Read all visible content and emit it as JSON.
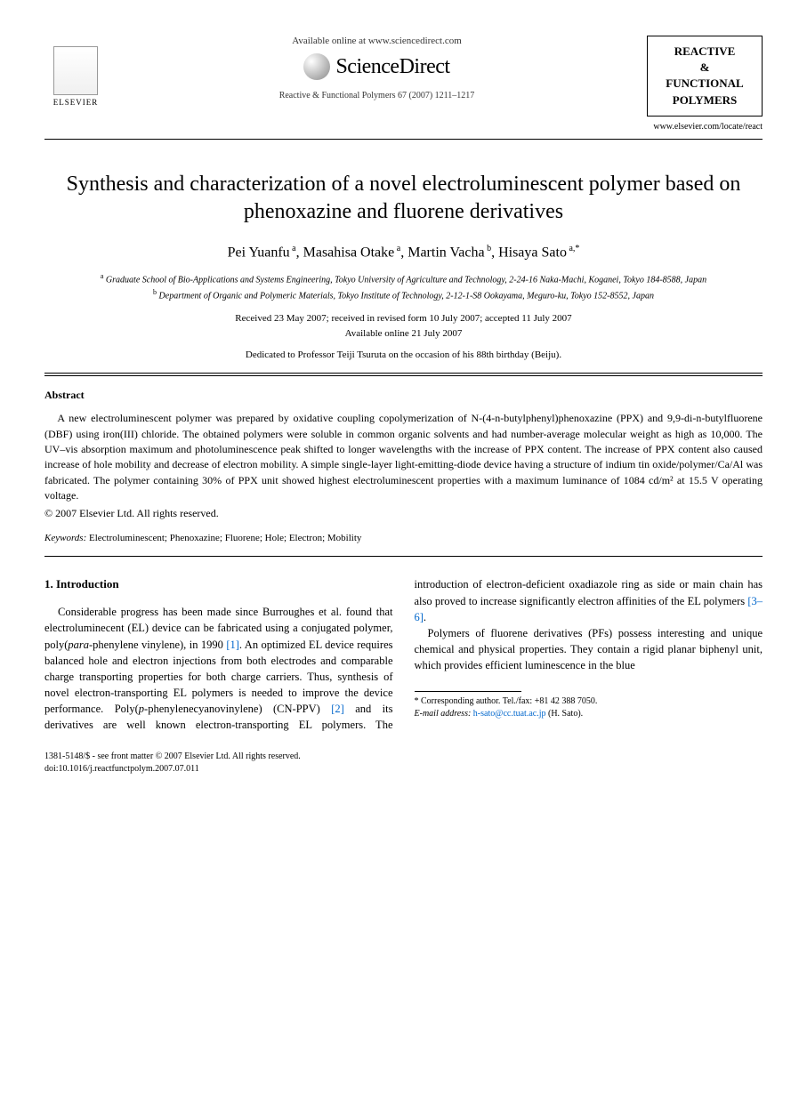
{
  "header": {
    "available_online": "Available online at www.sciencedirect.com",
    "sciencedirect": "ScienceDirect",
    "journal_ref": "Reactive & Functional Polymers 67 (2007) 1211–1217",
    "elsevier_label": "ELSEVIER",
    "journal_box_line1": "REACTIVE",
    "journal_box_line2": "&",
    "journal_box_line3": "FUNCTIONAL",
    "journal_box_line4": "POLYMERS",
    "journal_url": "www.elsevier.com/locate/react"
  },
  "title": "Synthesis and characterization of a novel electroluminescent polymer based on phenoxazine and fluorene derivatives",
  "authors_html": "Pei Yuanfu <sup>a</sup>, Masahisa Otake <sup>a</sup>, Martin Vacha <sup>b</sup>, Hisaya Sato <sup>a,*</sup>",
  "affiliations": {
    "a": "Graduate School of Bio-Applications and Systems Engineering, Tokyo University of Agriculture and Technology, 2-24-16 Naka-Machi, Koganei, Tokyo 184-8588, Japan",
    "b": "Department of Organic and Polymeric Materials, Tokyo Institute of Technology, 2-12-1-S8 Ookayama, Meguro-ku, Tokyo 152-8552, Japan"
  },
  "dates": {
    "line1": "Received 23 May 2007; received in revised form 10 July 2007; accepted 11 July 2007",
    "line2": "Available online 21 July 2007"
  },
  "dedication": "Dedicated to Professor Teiji Tsuruta on the occasion of his 88th birthday (Beiju).",
  "abstract": {
    "heading": "Abstract",
    "body": "A new electroluminescent polymer was prepared by oxidative coupling copolymerization of N-(4-n-butylphenyl)phenoxazine (PPX) and 9,9-di-n-butylfluorene (DBF) using iron(III) chloride. The obtained polymers were soluble in common organic solvents and had number-average molecular weight as high as 10,000. The UV–vis absorption maximum and photoluminescence peak shifted to longer wavelengths with the increase of PPX content. The increase of PPX content also caused increase of hole mobility and decrease of electron mobility. A simple single-layer light-emitting-diode device having a structure of indium tin oxide/polymer/Ca/Al was fabricated. The polymer containing 30% of PPX unit showed highest electroluminescent properties with a maximum luminance of 1084 cd/m² at 15.5 V operating voltage.",
    "copyright": "© 2007 Elsevier Ltd. All rights reserved."
  },
  "keywords": {
    "label": "Keywords:",
    "list": "Electroluminescent; Phenoxazine; Fluorene; Hole; Electron; Mobility"
  },
  "section1": {
    "heading": "1. Introduction",
    "p1_pre": "Considerable progress has been made since Burroughes et al. found that electroluminecent (EL) device can be fabricated using a conjugated polymer, poly(",
    "p1_para": "para",
    "p1_post1": "-phenylene vinylene), in 1990 ",
    "p1_ref1": "[1]",
    "p1_post2": ". An optimized EL device requires balanced hole and electron injections from both electrodes and comparable charge transporting properties for both charge carriers. Thus, synthesis of novel electron-transporting EL polymers is needed to improve the device performance. Poly(",
    "p1_pphen": "p",
    "p1_post3": "-phenylenecyanovinylene) (CN-PPV) ",
    "p1_ref2": "[2]",
    "p1_post4": " and its derivatives are well known electron-transporting EL polymers. The introduction of electron-deficient oxadiazole ring as side or main chain has also proved to increase significantly electron affinities of the EL polymers ",
    "p1_ref3": "[3–6]",
    "p1_post5": ".",
    "p2": "Polymers of fluorene derivatives (PFs) possess interesting and unique chemical and physical properties. They contain a rigid planar biphenyl unit, which provides efficient luminescence in the blue"
  },
  "footnote": {
    "corresponding": "Corresponding author. Tel./fax: +81 42 388 7050.",
    "email_label": "E-mail address:",
    "email": "h-sato@cc.tuat.ac.jp",
    "email_name": "(H. Sato)."
  },
  "footer": {
    "line1": "1381-5148/$ - see front matter © 2007 Elsevier Ltd. All rights reserved.",
    "line2": "doi:10.1016/j.reactfunctpolym.2007.07.011"
  }
}
